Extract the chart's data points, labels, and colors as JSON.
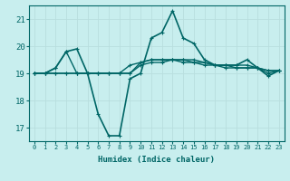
{
  "xlabel": "Humidex (Indice chaleur)",
  "x_ticks": [
    0,
    1,
    2,
    3,
    4,
    5,
    6,
    7,
    8,
    9,
    10,
    11,
    12,
    13,
    14,
    15,
    16,
    17,
    18,
    19,
    20,
    21,
    22,
    23
  ],
  "ylim": [
    16.5,
    21.5
  ],
  "yticks": [
    17,
    18,
    19,
    20,
    21
  ],
  "bg_color": "#c8eeee",
  "grid_color": "#b8dede",
  "line_color": "#006666",
  "series": [
    [
      19.0,
      19.0,
      19.2,
      19.8,
      19.9,
      19.0,
      17.5,
      16.7,
      16.7,
      18.8,
      19.0,
      20.3,
      20.5,
      21.3,
      20.3,
      20.1,
      19.5,
      19.3,
      19.3,
      19.3,
      19.5,
      19.2,
      18.9,
      19.1
    ],
    [
      19.0,
      19.0,
      19.2,
      19.8,
      19.0,
      19.0,
      19.0,
      19.0,
      19.0,
      19.3,
      19.4,
      19.5,
      19.5,
      19.5,
      19.5,
      19.5,
      19.4,
      19.3,
      19.3,
      19.3,
      19.3,
      19.2,
      19.1,
      19.1
    ],
    [
      19.0,
      19.0,
      19.0,
      19.0,
      19.0,
      19.0,
      19.0,
      19.0,
      19.0,
      19.0,
      19.4,
      19.5,
      19.5,
      19.5,
      19.5,
      19.4,
      19.4,
      19.3,
      19.3,
      19.2,
      19.2,
      19.2,
      19.1,
      19.1
    ],
    [
      19.0,
      19.0,
      19.0,
      19.0,
      19.0,
      19.0,
      19.0,
      19.0,
      19.0,
      19.0,
      19.3,
      19.4,
      19.4,
      19.5,
      19.4,
      19.4,
      19.3,
      19.3,
      19.2,
      19.2,
      19.2,
      19.2,
      19.0,
      19.1
    ]
  ]
}
